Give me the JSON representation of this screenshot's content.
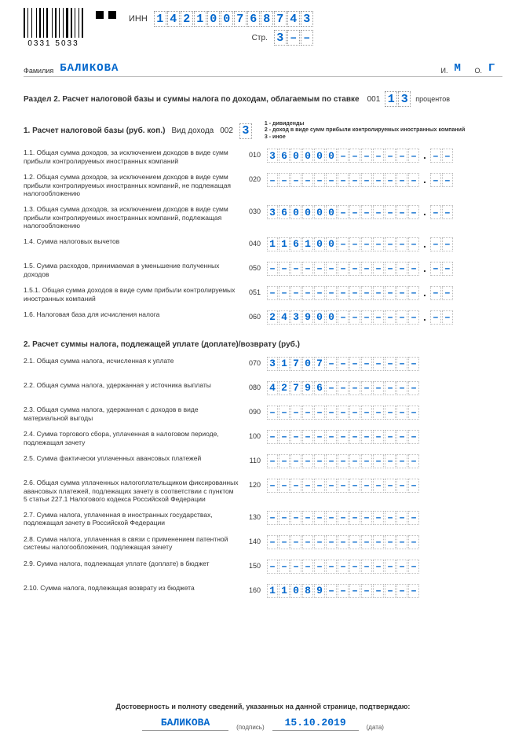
{
  "colors": {
    "accent": "#0066cc",
    "text": "#333333",
    "cell_border": "#bbbbbb",
    "background": "#ffffff"
  },
  "typography": {
    "mono": "Courier New",
    "base_font": "Arial",
    "digit_fontsize": 15,
    "label_fontsize": 9
  },
  "barcode": {
    "number": "0331 5033",
    "bar_widths": [
      2,
      1,
      1,
      2,
      1,
      3,
      1,
      1,
      2,
      1,
      1,
      1,
      2,
      3,
      1,
      1,
      2,
      1,
      1,
      2,
      1,
      1,
      3,
      1,
      2,
      1,
      1,
      2,
      1,
      1,
      2
    ]
  },
  "header": {
    "inn_label": "ИНН",
    "inn": [
      "1",
      "4",
      "2",
      "1",
      "0",
      "0",
      "7",
      "6",
      "8",
      "7",
      "4",
      "3"
    ],
    "str_label": "Стр.",
    "str": [
      "3",
      "–",
      "–"
    ]
  },
  "person": {
    "surname_label": "Фамилия",
    "surname": "БАЛИКОВА",
    "i_label": "И.",
    "i": "М",
    "o_label": "О.",
    "o": "Г"
  },
  "section_title": "Раздел 2. Расчет налоговой базы и суммы налога по доходам, облагаемым по ставке",
  "code001_label": "001",
  "rate": [
    "1",
    "3"
  ],
  "rate_suffix": "процентов",
  "sub1": {
    "title": "1. Расчет налоговой базы (руб. коп.)",
    "vid_label": "Вид дохода",
    "code002_label": "002",
    "vid": [
      "3"
    ],
    "legend1": "1 - дивиденды",
    "legend2": "2 - доход в виде сумм прибыли контролируемых иностранных компаний",
    "legend3": "3 - иное"
  },
  "rows1": [
    {
      "desc": "1.1. Общая сумма доходов, за исключением доходов в виде сумм прибыли контролируемых иностранных компаний",
      "code": "010",
      "int": [
        "3",
        "6",
        "0",
        "0",
        "0",
        "0",
        "–",
        "–",
        "–",
        "–",
        "–",
        "–",
        "–"
      ],
      "frac": [
        "–",
        "–"
      ]
    },
    {
      "desc": "1.2. Общая сумма доходов, за исключением доходов в виде сумм прибыли контролируемых иностранных компаний, не подлежащая налогообложению",
      "code": "020",
      "int": [
        "–",
        "–",
        "–",
        "–",
        "–",
        "–",
        "–",
        "–",
        "–",
        "–",
        "–",
        "–",
        "–"
      ],
      "frac": [
        "–",
        "–"
      ]
    },
    {
      "desc": "1.3. Общая сумма доходов, за исключением доходов в виде сумм прибыли контролируемых иностранных компаний, подлежащая налогообложению",
      "code": "030",
      "int": [
        "3",
        "6",
        "0",
        "0",
        "0",
        "0",
        "–",
        "–",
        "–",
        "–",
        "–",
        "–",
        "–"
      ],
      "frac": [
        "–",
        "–"
      ]
    },
    {
      "desc": "1.4. Сумма налоговых вычетов",
      "code": "040",
      "int": [
        "1",
        "1",
        "6",
        "1",
        "0",
        "0",
        "–",
        "–",
        "–",
        "–",
        "–",
        "–",
        "–"
      ],
      "frac": [
        "–",
        "–"
      ]
    },
    {
      "desc": "1.5. Сумма расходов, принимаемая в уменьшение полученных доходов",
      "code": "050",
      "int": [
        "–",
        "–",
        "–",
        "–",
        "–",
        "–",
        "–",
        "–",
        "–",
        "–",
        "–",
        "–",
        "–"
      ],
      "frac": [
        "–",
        "–"
      ]
    },
    {
      "desc": "1.5.1. Общая сумма доходов в виде сумм прибыли контролируемых иностранных компаний",
      "code": "051",
      "int": [
        "–",
        "–",
        "–",
        "–",
        "–",
        "–",
        "–",
        "–",
        "–",
        "–",
        "–",
        "–",
        "–"
      ],
      "frac": [
        "–",
        "–"
      ]
    },
    {
      "desc": "1.6. Налоговая база для исчисления налога",
      "code": "060",
      "int": [
        "2",
        "4",
        "3",
        "9",
        "0",
        "0",
        "–",
        "–",
        "–",
        "–",
        "–",
        "–",
        "–"
      ],
      "frac": [
        "–",
        "–"
      ]
    }
  ],
  "section2_sub": "2. Расчет суммы налога, подлежащей уплате (доплате)/возврату (руб.)",
  "rows2": [
    {
      "desc": "2.1. Общая сумма налога, исчисленная к уплате",
      "code": "070",
      "int": [
        "3",
        "1",
        "7",
        "0",
        "7",
        "–",
        "–",
        "–",
        "–",
        "–",
        "–",
        "–",
        "–"
      ]
    },
    {
      "desc": "2.2. Общая сумма налога, удержанная у источника выплаты",
      "code": "080",
      "int": [
        "4",
        "2",
        "7",
        "9",
        "6",
        "–",
        "–",
        "–",
        "–",
        "–",
        "–",
        "–",
        "–"
      ]
    },
    {
      "desc": "2.3. Общая сумма налога, удержанная с доходов в виде материальной выгоды",
      "code": "090",
      "int": [
        "–",
        "–",
        "–",
        "–",
        "–",
        "–",
        "–",
        "–",
        "–",
        "–",
        "–",
        "–",
        "–"
      ]
    },
    {
      "desc": "2.4. Сумма торгового сбора, уплаченная в налоговом периоде, подлежащая зачету",
      "code": "100",
      "int": [
        "–",
        "–",
        "–",
        "–",
        "–",
        "–",
        "–",
        "–",
        "–",
        "–",
        "–",
        "–",
        "–"
      ]
    },
    {
      "desc": "2.5. Сумма фактически уплаченных авансовых платежей",
      "code": "110",
      "int": [
        "–",
        "–",
        "–",
        "–",
        "–",
        "–",
        "–",
        "–",
        "–",
        "–",
        "–",
        "–",
        "–"
      ]
    },
    {
      "desc": "2.6. Общая сумма уплаченных налогоплательщиком фиксированных авансовых платежей, подлежащих зачету в соответствии с пунктом 5 статьи 227.1 Налогового кодекса Российской Федерации",
      "code": "120",
      "int": [
        "–",
        "–",
        "–",
        "–",
        "–",
        "–",
        "–",
        "–",
        "–",
        "–",
        "–",
        "–",
        "–"
      ]
    },
    {
      "desc": "2.7. Сумма налога, уплаченная в иностранных государствах, подлежащая зачету в Российской Федерации",
      "code": "130",
      "int": [
        "–",
        "–",
        "–",
        "–",
        "–",
        "–",
        "–",
        "–",
        "–",
        "–",
        "–",
        "–",
        "–"
      ]
    },
    {
      "desc": "2.8. Сумма налога, уплаченная в связи с применением патентной системы налогообложения, подлежащая зачету",
      "code": "140",
      "int": [
        "–",
        "–",
        "–",
        "–",
        "–",
        "–",
        "–",
        "–",
        "–",
        "–",
        "–",
        "–",
        "–"
      ]
    },
    {
      "desc": "2.9. Сумма налога, подлежащая уплате (доплате) в бюджет",
      "code": "150",
      "int": [
        "–",
        "–",
        "–",
        "–",
        "–",
        "–",
        "–",
        "–",
        "–",
        "–",
        "–",
        "–",
        "–"
      ]
    },
    {
      "desc": "2.10. Сумма налога, подлежащая возврату из бюджета",
      "code": "160",
      "int": [
        "1",
        "1",
        "0",
        "8",
        "9",
        "–",
        "–",
        "–",
        "–",
        "–",
        "–",
        "–",
        "–"
      ]
    }
  ],
  "footer": {
    "confirm": "Достоверность и полноту сведений, указанных на данной странице, подтверждаю:",
    "sig_name": "БАЛИКОВА",
    "sig_label": "(подпись)",
    "date": "15.10.2019",
    "date_label": "(дата)"
  }
}
